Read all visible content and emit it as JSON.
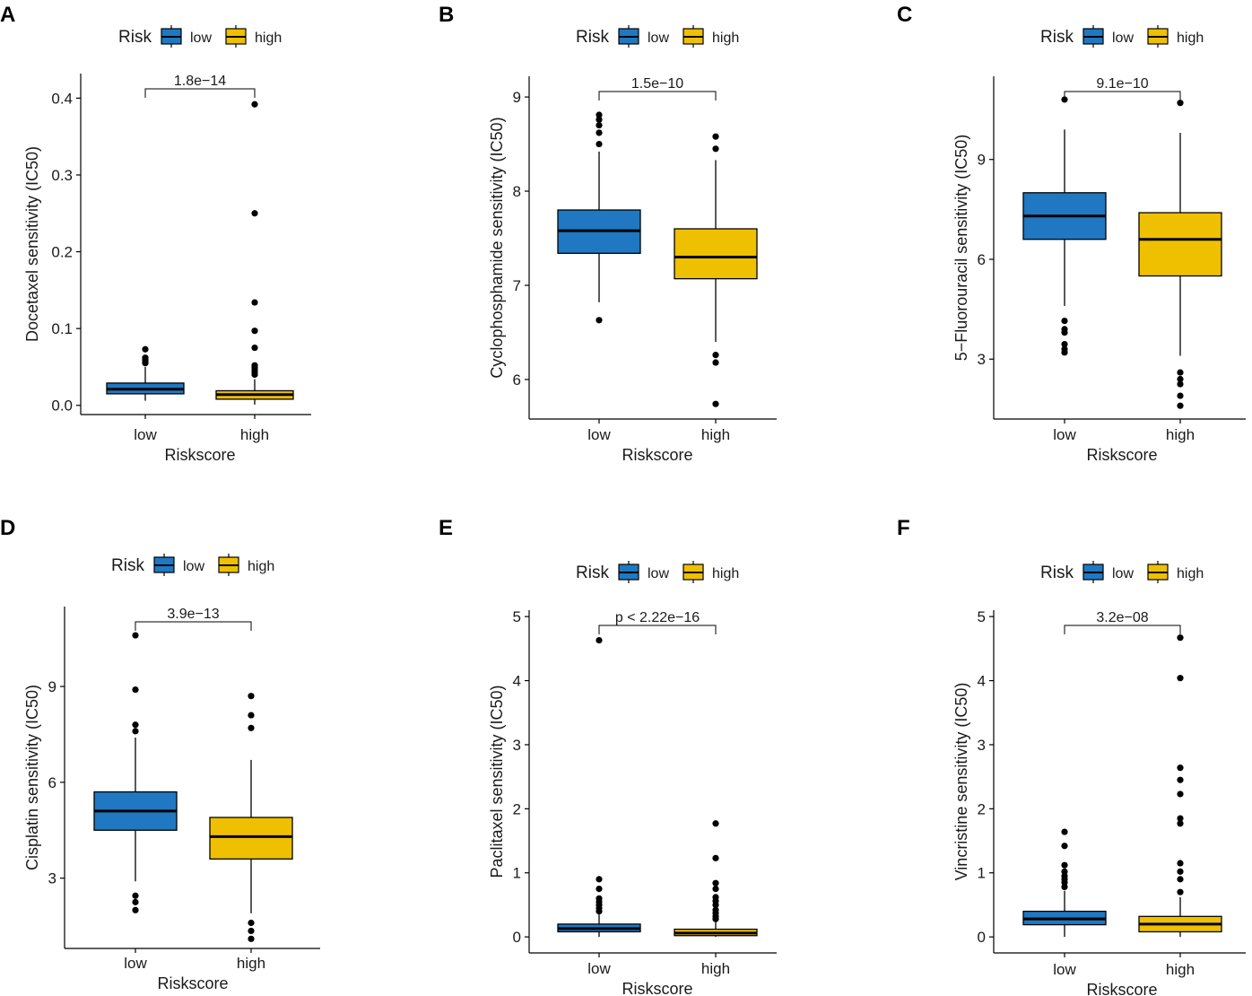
{
  "figure": {
    "type": "boxplot-grid",
    "colors": {
      "low": "#1f78c1",
      "high": "#efc000",
      "stroke": "#000000"
    }
  },
  "chart_data": [
    {
      "panel": "A",
      "type": "box",
      "legend": {
        "title": "Risk",
        "entries": [
          "low",
          "high"
        ]
      },
      "xlabel": "Riskscore",
      "ylabel": "Docetaxel sensitivity (IC50)",
      "categories": [
        "low",
        "high"
      ],
      "ylim": [
        -0.012,
        0.432
      ],
      "yticks": [
        0,
        0.1,
        0.2,
        0.3,
        0.4
      ],
      "ytick_labels": [
        "0.0",
        "0.1",
        "0.2",
        "0.3",
        "0.4"
      ],
      "pvalue": "1.8e−14",
      "boxes": [
        {
          "group": "low",
          "q1": 0.015,
          "median": 0.021,
          "q3": 0.029,
          "whisker_low": 0.006,
          "whisker_high": 0.05,
          "outliers": [
            0.055,
            0.058,
            0.06,
            0.062,
            0.073
          ]
        },
        {
          "group": "high",
          "q1": 0.008,
          "median": 0.014,
          "q3": 0.019,
          "whisker_low": 0.001,
          "whisker_high": 0.034,
          "outliers": [
            0.04,
            0.043,
            0.046,
            0.049,
            0.052,
            0.075,
            0.097,
            0.134,
            0.25,
            0.392
          ]
        }
      ]
    },
    {
      "panel": "B",
      "type": "box",
      "legend": {
        "title": "Risk",
        "entries": [
          "low",
          "high"
        ]
      },
      "xlabel": "Riskscore",
      "ylabel": "Cyclophosphamide sensitivity (IC50)",
      "categories": [
        "low",
        "high"
      ],
      "ylim": [
        5.58,
        9.22
      ],
      "yticks": [
        6,
        7,
        8,
        9
      ],
      "ytick_labels": [
        "6",
        "7",
        "8",
        "9"
      ],
      "pvalue": "1.5e−10",
      "boxes": [
        {
          "group": "low",
          "q1": 7.34,
          "median": 7.58,
          "q3": 7.8,
          "whisker_low": 6.82,
          "whisker_high": 8.42,
          "outliers": [
            6.63,
            8.5,
            8.62,
            8.7,
            8.76,
            8.81
          ]
        },
        {
          "group": "high",
          "q1": 7.07,
          "median": 7.3,
          "q3": 7.6,
          "whisker_low": 6.4,
          "whisker_high": 8.33,
          "outliers": [
            5.74,
            6.18,
            6.26,
            8.45,
            8.58
          ]
        }
      ]
    },
    {
      "panel": "C",
      "type": "box",
      "legend": {
        "title": "Risk",
        "entries": [
          "low",
          "high"
        ]
      },
      "xlabel": "Riskscore",
      "ylabel": "5−Fluorouracil sensitivity (IC50)",
      "categories": [
        "low",
        "high"
      ],
      "ylim": [
        1.2,
        11.5
      ],
      "yticks": [
        3,
        6,
        9
      ],
      "ytick_labels": [
        "3",
        "6",
        "9"
      ],
      "pvalue": "9.1e−10",
      "boxes": [
        {
          "group": "low",
          "q1": 6.6,
          "median": 7.3,
          "q3": 8.0,
          "whisker_low": 4.6,
          "whisker_high": 9.9,
          "outliers": [
            3.2,
            3.3,
            3.45,
            3.8,
            3.9,
            4.15,
            10.8
          ]
        },
        {
          "group": "high",
          "q1": 5.5,
          "median": 6.6,
          "q3": 7.4,
          "whisker_low": 3.1,
          "whisker_high": 9.8,
          "outliers": [
            1.6,
            1.9,
            2.25,
            2.4,
            2.6,
            10.7
          ]
        }
      ]
    },
    {
      "panel": "D",
      "type": "box",
      "legend": {
        "title": "Risk",
        "entries": [
          "low",
          "high"
        ]
      },
      "xlabel": "Riskscore",
      "ylabel": "Cisplatin sensitivity (IC50)",
      "categories": [
        "low",
        "high"
      ],
      "ylim": [
        0.8,
        11.5
      ],
      "yticks": [
        3,
        6,
        9
      ],
      "ytick_labels": [
        "3",
        "6",
        "9"
      ],
      "pvalue": "3.9e−13",
      "boxes": [
        {
          "group": "low",
          "q1": 4.5,
          "median": 5.1,
          "q3": 5.7,
          "whisker_low": 2.9,
          "whisker_high": 7.4,
          "outliers": [
            2.0,
            2.25,
            2.45,
            7.6,
            7.8,
            8.9,
            10.6
          ]
        },
        {
          "group": "high",
          "q1": 3.6,
          "median": 4.3,
          "q3": 4.9,
          "whisker_low": 1.9,
          "whisker_high": 6.7,
          "outliers": [
            1.1,
            1.35,
            1.6,
            7.7,
            8.1,
            8.7
          ]
        }
      ]
    },
    {
      "panel": "E",
      "type": "box",
      "legend": {
        "title": "Risk",
        "entries": [
          "low",
          "high"
        ]
      },
      "xlabel": "Riskscore",
      "ylabel": "Paclitaxel sensitivity (IC50)",
      "categories": [
        "low",
        "high"
      ],
      "ylim": [
        -0.25,
        5.1
      ],
      "yticks": [
        0,
        1,
        2,
        3,
        4,
        5
      ],
      "ytick_labels": [
        "0",
        "1",
        "2",
        "3",
        "4",
        "5"
      ],
      "pvalue": "p < 2.22e−16",
      "boxes": [
        {
          "group": "low",
          "q1": 0.08,
          "median": 0.13,
          "q3": 0.2,
          "whisker_low": 0.0,
          "whisker_high": 0.35,
          "outliers": [
            0.4,
            0.45,
            0.5,
            0.55,
            0.6,
            0.75,
            0.9,
            4.63
          ]
        },
        {
          "group": "high",
          "q1": 0.02,
          "median": 0.06,
          "q3": 0.12,
          "whisker_low": 0.0,
          "whisker_high": 0.25,
          "outliers": [
            0.28,
            0.32,
            0.37,
            0.42,
            0.5,
            0.56,
            0.62,
            0.75,
            0.84,
            1.23,
            1.77
          ]
        }
      ]
    },
    {
      "panel": "F",
      "type": "box",
      "legend": {
        "title": "Risk",
        "entries": [
          "low",
          "high"
        ]
      },
      "xlabel": "Riskscore",
      "ylabel": "Vincristine sensitivity (IC50)",
      "categories": [
        "low",
        "high"
      ],
      "ylim": [
        -0.25,
        5.1
      ],
      "yticks": [
        0,
        1,
        2,
        3,
        4,
        5
      ],
      "ytick_labels": [
        "0",
        "1",
        "2",
        "3",
        "4",
        "5"
      ],
      "pvalue": "3.2e−08",
      "boxes": [
        {
          "group": "low",
          "q1": 0.19,
          "median": 0.28,
          "q3": 0.4,
          "whisker_low": 0.0,
          "whisker_high": 0.72,
          "outliers": [
            0.78,
            0.85,
            0.9,
            0.95,
            1.02,
            1.12,
            1.42,
            1.64
          ]
        },
        {
          "group": "high",
          "q1": 0.08,
          "median": 0.2,
          "q3": 0.32,
          "whisker_low": 0.0,
          "whisker_high": 0.62,
          "outliers": [
            0.7,
            0.9,
            1.02,
            1.15,
            1.77,
            1.85,
            2.23,
            2.45,
            2.64,
            4.04,
            4.67
          ]
        }
      ]
    }
  ]
}
